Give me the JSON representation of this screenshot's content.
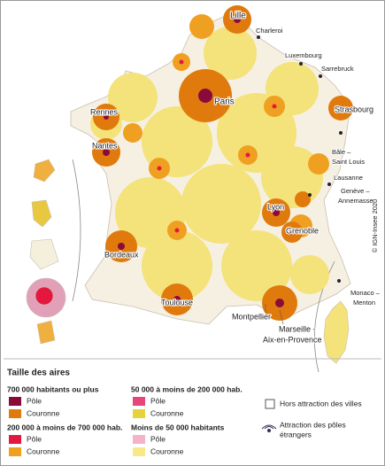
{
  "map": {
    "cities": [
      "Lille",
      "Charleroi",
      "Luxembourg",
      "Sarrebruck",
      "Paris",
      "Rennes",
      "Strasbourg",
      "Nantes",
      "Bâle –",
      "Saint Louis",
      "Lausanne",
      "Genève –",
      "Annemasse",
      "Lyon",
      "Grenoble",
      "Bordeaux",
      "Toulouse",
      "Montpellier",
      "Marseille -",
      "Aix-en-Provence",
      "Monaco –",
      "Menton"
    ],
    "copyright": "© IGN-Insee 2020",
    "legend": {
      "title": "Taille des aires",
      "groups": [
        {
          "heading": "700 000 habitants ou plus",
          "items": [
            "Pôle",
            "Couronne"
          ]
        },
        {
          "heading": "200 000 à moins de 700 000 hab.",
          "items": [
            "Pôle",
            "Couronne"
          ]
        },
        {
          "heading": "50 000 à moins de 200 000 hab.",
          "items": [
            "Pôle",
            "Couronne"
          ]
        },
        {
          "heading": "Moins de 50 000 habitants",
          "items": [
            "Pôle",
            "Couronne"
          ]
        }
      ],
      "outside": "Hors attraction des villes",
      "foreign": [
        "Attraction des pôles",
        "étrangers"
      ]
    }
  }
}
